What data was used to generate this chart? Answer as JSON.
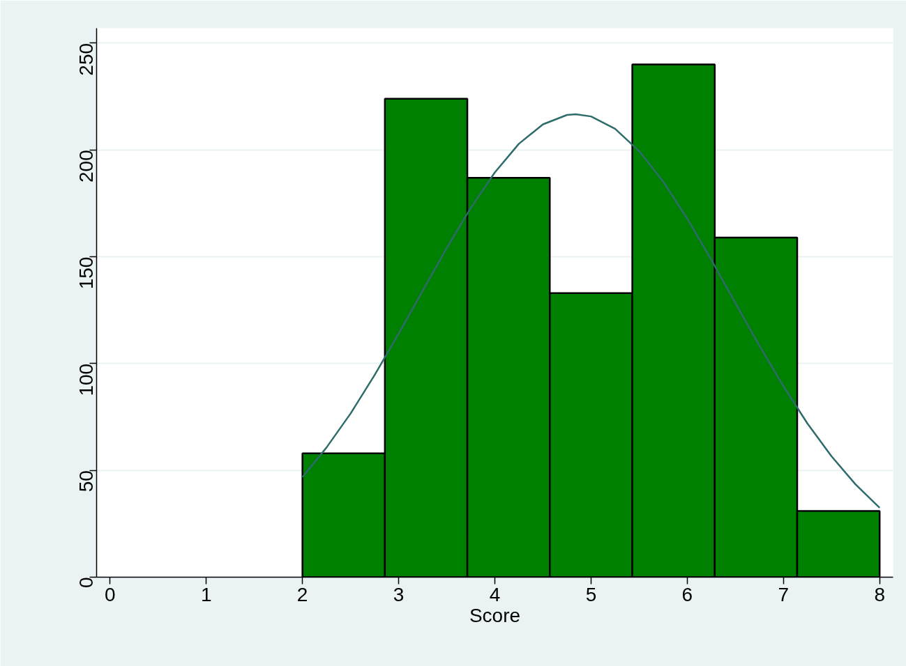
{
  "chart_data": {
    "type": "histogram",
    "xlabel": "Score",
    "bins": [
      2,
      2.857,
      3.714,
      4.571,
      5.429,
      6.286,
      7.143,
      8
    ],
    "values": [
      58,
      224,
      187,
      133,
      240,
      159,
      31
    ],
    "color": "#008000",
    "series": [
      {
        "type": "line",
        "color": "#2e6b6b",
        "x": [
          2,
          2.25,
          2.5,
          2.75,
          3,
          3.25,
          3.5,
          3.75,
          4,
          4.25,
          4.5,
          4.75,
          4.84,
          5,
          5.25,
          5.5,
          5.75,
          6,
          6.25,
          6.5,
          6.75,
          7,
          7.25,
          7.5,
          7.75,
          8
        ],
        "values": [
          46.9,
          60.7,
          76.6,
          94.6,
          114.0,
          134.1,
          154.1,
          172.9,
          189.5,
          202.9,
          212.0,
          216.4,
          216.7,
          215.7,
          209.9,
          199.5,
          185.2,
          167.9,
          148.6,
          128.4,
          108.4,
          89.4,
          71.9,
          56.6,
          43.4,
          32.5
        ]
      }
    ],
    "xlim": [
      -0.14,
      8.14
    ],
    "ylim": [
      0,
      257
    ],
    "xticks": [
      0,
      1,
      2,
      3,
      4,
      5,
      6,
      7,
      8
    ],
    "yticks": [
      0,
      50,
      100,
      150,
      200,
      250
    ],
    "grid": "y"
  }
}
